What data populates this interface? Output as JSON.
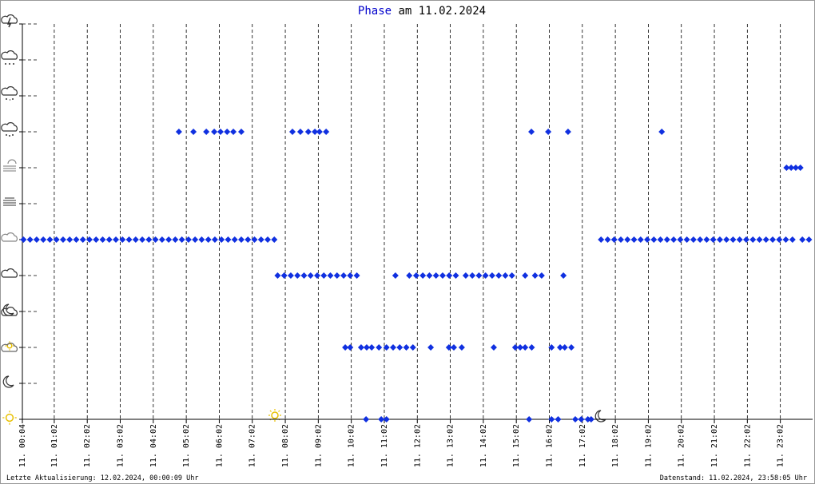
{
  "chart_data": {
    "type": "scatter",
    "title_parts": [
      "Phase",
      "am 11.02.2024"
    ],
    "title_color": "#0000cc",
    "footer_left": "Letzte Aktualisierung: 12.02.2024, 00:00:09 Uhr",
    "footer_right": "Datenstand: 11.02.2024, 23:58:05 Uhr",
    "color": "#1030e0",
    "xlim": [
      0.067,
      24.01
    ],
    "ylim": [
      0,
      11
    ],
    "yticks": [
      0,
      1,
      2,
      3,
      4,
      5,
      6,
      7,
      8,
      9,
      10,
      11
    ],
    "xticks": [
      {
        "value": 0.067,
        "label": "11. 00:04"
      },
      {
        "value": 1.033,
        "label": "11. 01:02"
      },
      {
        "value": 2.033,
        "label": "11. 02:02"
      },
      {
        "value": 3.033,
        "label": "11. 03:02"
      },
      {
        "value": 4.033,
        "label": "11. 04:02"
      },
      {
        "value": 5.033,
        "label": "11. 05:02"
      },
      {
        "value": 6.033,
        "label": "11. 06:02"
      },
      {
        "value": 7.033,
        "label": "11. 07:02"
      },
      {
        "value": 8.033,
        "label": "11. 08:02"
      },
      {
        "value": 9.033,
        "label": "11. 09:02"
      },
      {
        "value": 10.033,
        "label": "11. 10:02"
      },
      {
        "value": 11.033,
        "label": "11. 11:02"
      },
      {
        "value": 12.033,
        "label": "11. 12:02"
      },
      {
        "value": 13.033,
        "label": "11. 13:02"
      },
      {
        "value": 14.033,
        "label": "11. 14:02"
      },
      {
        "value": 15.033,
        "label": "11. 15:02"
      },
      {
        "value": 16.033,
        "label": "11. 16:02"
      },
      {
        "value": 17.033,
        "label": "11. 17:02"
      },
      {
        "value": 18.033,
        "label": "11. 18:02"
      },
      {
        "value": 19.033,
        "label": "11. 19:02"
      },
      {
        "value": 20.033,
        "label": "11. 20:02"
      },
      {
        "value": 21.033,
        "label": "11. 21:02"
      },
      {
        "value": 22.033,
        "label": "11. 22:02"
      },
      {
        "value": 23.033,
        "label": "11. 23:02"
      }
    ],
    "series": [
      {
        "y": 5,
        "x": [
          0.1,
          0.3,
          0.5,
          0.7,
          0.9,
          1.1,
          1.3,
          1.5,
          1.7,
          1.9,
          2.1,
          2.3,
          2.5,
          2.7,
          2.9,
          3.1,
          3.3,
          3.5,
          3.7,
          3.9,
          4.1,
          4.3,
          4.5,
          4.7,
          4.9,
          5.1,
          5.3,
          5.5,
          5.7,
          5.9,
          6.1,
          6.3,
          6.5,
          6.7,
          6.9,
          7.1,
          7.3,
          7.5,
          7.7,
          17.6,
          17.8,
          18.0,
          18.2,
          18.4,
          18.6,
          18.8,
          19.0,
          19.2,
          19.4,
          19.6,
          19.8,
          20.0,
          20.2,
          20.4,
          20.6,
          20.8,
          21.0,
          21.2,
          21.4,
          21.6,
          21.8,
          22.0,
          22.2,
          22.4,
          22.6,
          22.8,
          23.0,
          23.2,
          23.4,
          23.7,
          23.9
        ]
      },
      {
        "y": 8,
        "x": [
          4.81,
          5.25,
          5.64,
          5.88,
          6.07,
          6.27,
          6.46,
          6.7,
          8.25,
          8.49,
          8.73,
          8.93,
          9.07,
          9.27,
          15.49,
          16.0,
          16.6,
          19.44
        ]
      },
      {
        "y": 7,
        "x": [
          23.22,
          23.36,
          23.5,
          23.64
        ]
      },
      {
        "y": 4,
        "x": [
          7.8,
          8.0,
          8.2,
          8.4,
          8.6,
          8.8,
          9.0,
          9.2,
          9.4,
          9.6,
          9.8,
          10.0,
          10.2,
          11.37,
          11.79,
          12.0,
          12.2,
          12.4,
          12.6,
          12.8,
          13.0,
          13.2,
          13.5,
          13.7,
          13.9,
          14.1,
          14.3,
          14.5,
          14.7,
          14.9,
          15.3,
          15.6,
          15.8,
          16.46
        ]
      },
      {
        "y": 2,
        "x": [
          9.85,
          10.0,
          10.33,
          10.5,
          10.65,
          10.87,
          11.1,
          11.3,
          11.5,
          11.7,
          11.9,
          12.44,
          12.99,
          13.14,
          13.38,
          14.35,
          15.0,
          15.15,
          15.3,
          15.5,
          16.1,
          16.36,
          16.5,
          16.7
        ]
      },
      {
        "y": 0,
        "x": [
          10.48,
          10.94,
          11.1,
          15.42,
          16.1,
          16.3,
          16.82,
          17.0,
          17.2,
          17.3
        ]
      }
    ]
  }
}
